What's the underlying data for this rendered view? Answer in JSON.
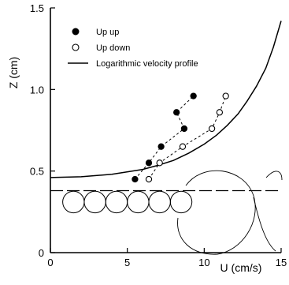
{
  "chart_data": {
    "type": "scatter",
    "title": "",
    "xlabel": "U (cm/s)",
    "ylabel": "Z (cm)",
    "xlim": [
      0,
      15
    ],
    "ylim": [
      0,
      1.5
    ],
    "xticks": [
      "0",
      "5",
      "10",
      "15"
    ],
    "yticks": [
      "0",
      "0.5",
      "1.0",
      "1.5"
    ],
    "legend_position": "top-left",
    "series": [
      {
        "name": "Up up",
        "marker": "filled-circle",
        "connected": true,
        "x": [
          5.5,
          6.4,
          7.2,
          8.7,
          8.2,
          9.3
        ],
        "y": [
          0.45,
          0.55,
          0.65,
          0.76,
          0.86,
          0.96
        ]
      },
      {
        "name": "Up down",
        "marker": "open-circle",
        "connected": true,
        "x": [
          6.4,
          7.1,
          8.6,
          10.5,
          11.0,
          11.4
        ],
        "y": [
          0.45,
          0.55,
          0.65,
          0.76,
          0.86,
          0.96
        ]
      },
      {
        "name": "Logarithmic velocity profile",
        "marker": "none",
        "line": "solid",
        "x": [
          0,
          2,
          4,
          6,
          7,
          8,
          9,
          10,
          10.8,
          11.5,
          12.2,
          12.8,
          13.4,
          14,
          14.5,
          15
        ],
        "y": [
          0.46,
          0.465,
          0.48,
          0.51,
          0.535,
          0.565,
          0.61,
          0.665,
          0.72,
          0.78,
          0.85,
          0.93,
          1.02,
          1.13,
          1.26,
          1.42
        ]
      }
    ],
    "reference_lines": [
      {
        "style": "dashed",
        "y": 0.38
      }
    ],
    "bed_particles": {
      "count": 6,
      "z_center": 0.31,
      "x_centers": [
        1.5,
        2.9,
        4.3,
        5.7,
        7.1,
        8.5
      ]
    }
  }
}
